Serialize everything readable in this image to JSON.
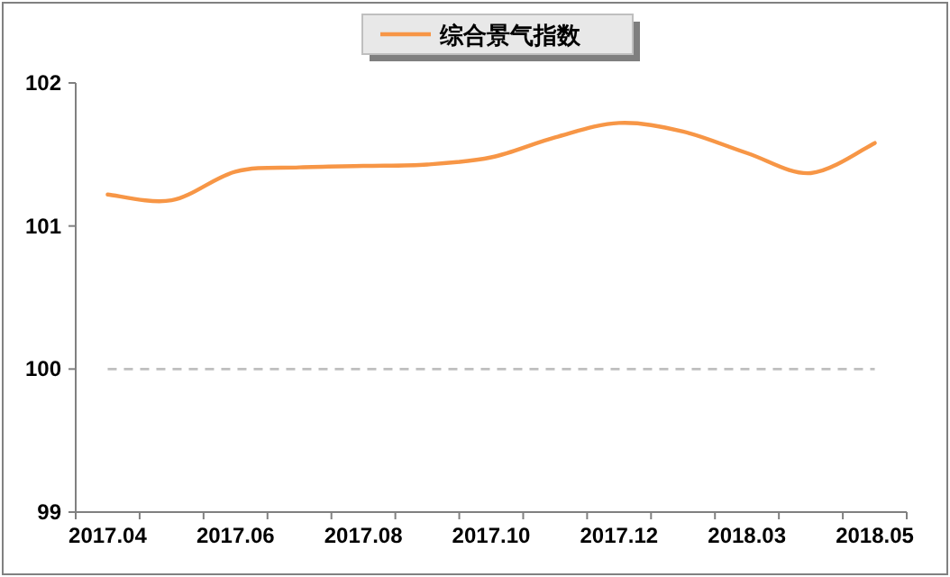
{
  "chart_data": {
    "type": "line",
    "categories": [
      "2017.04",
      null,
      "2017.06",
      null,
      "2017.08",
      null,
      "2017.10",
      null,
      "2017.12",
      null,
      "2018.03",
      null,
      "2018.05"
    ],
    "series": [
      {
        "name": "综合景气指数",
        "color": "#f79646",
        "values": [
          101.22,
          101.18,
          101.38,
          101.41,
          101.42,
          101.43,
          101.48,
          101.62,
          101.72,
          101.66,
          101.51,
          101.37,
          101.58
        ]
      }
    ],
    "ylim": [
      99,
      102
    ],
    "yticks": [
      99,
      100,
      101,
      102
    ],
    "ref_lines": [
      {
        "axis": "y",
        "value": 100,
        "color": "#bfbfbf",
        "line_style": "dashed"
      }
    ],
    "legend": "top"
  }
}
